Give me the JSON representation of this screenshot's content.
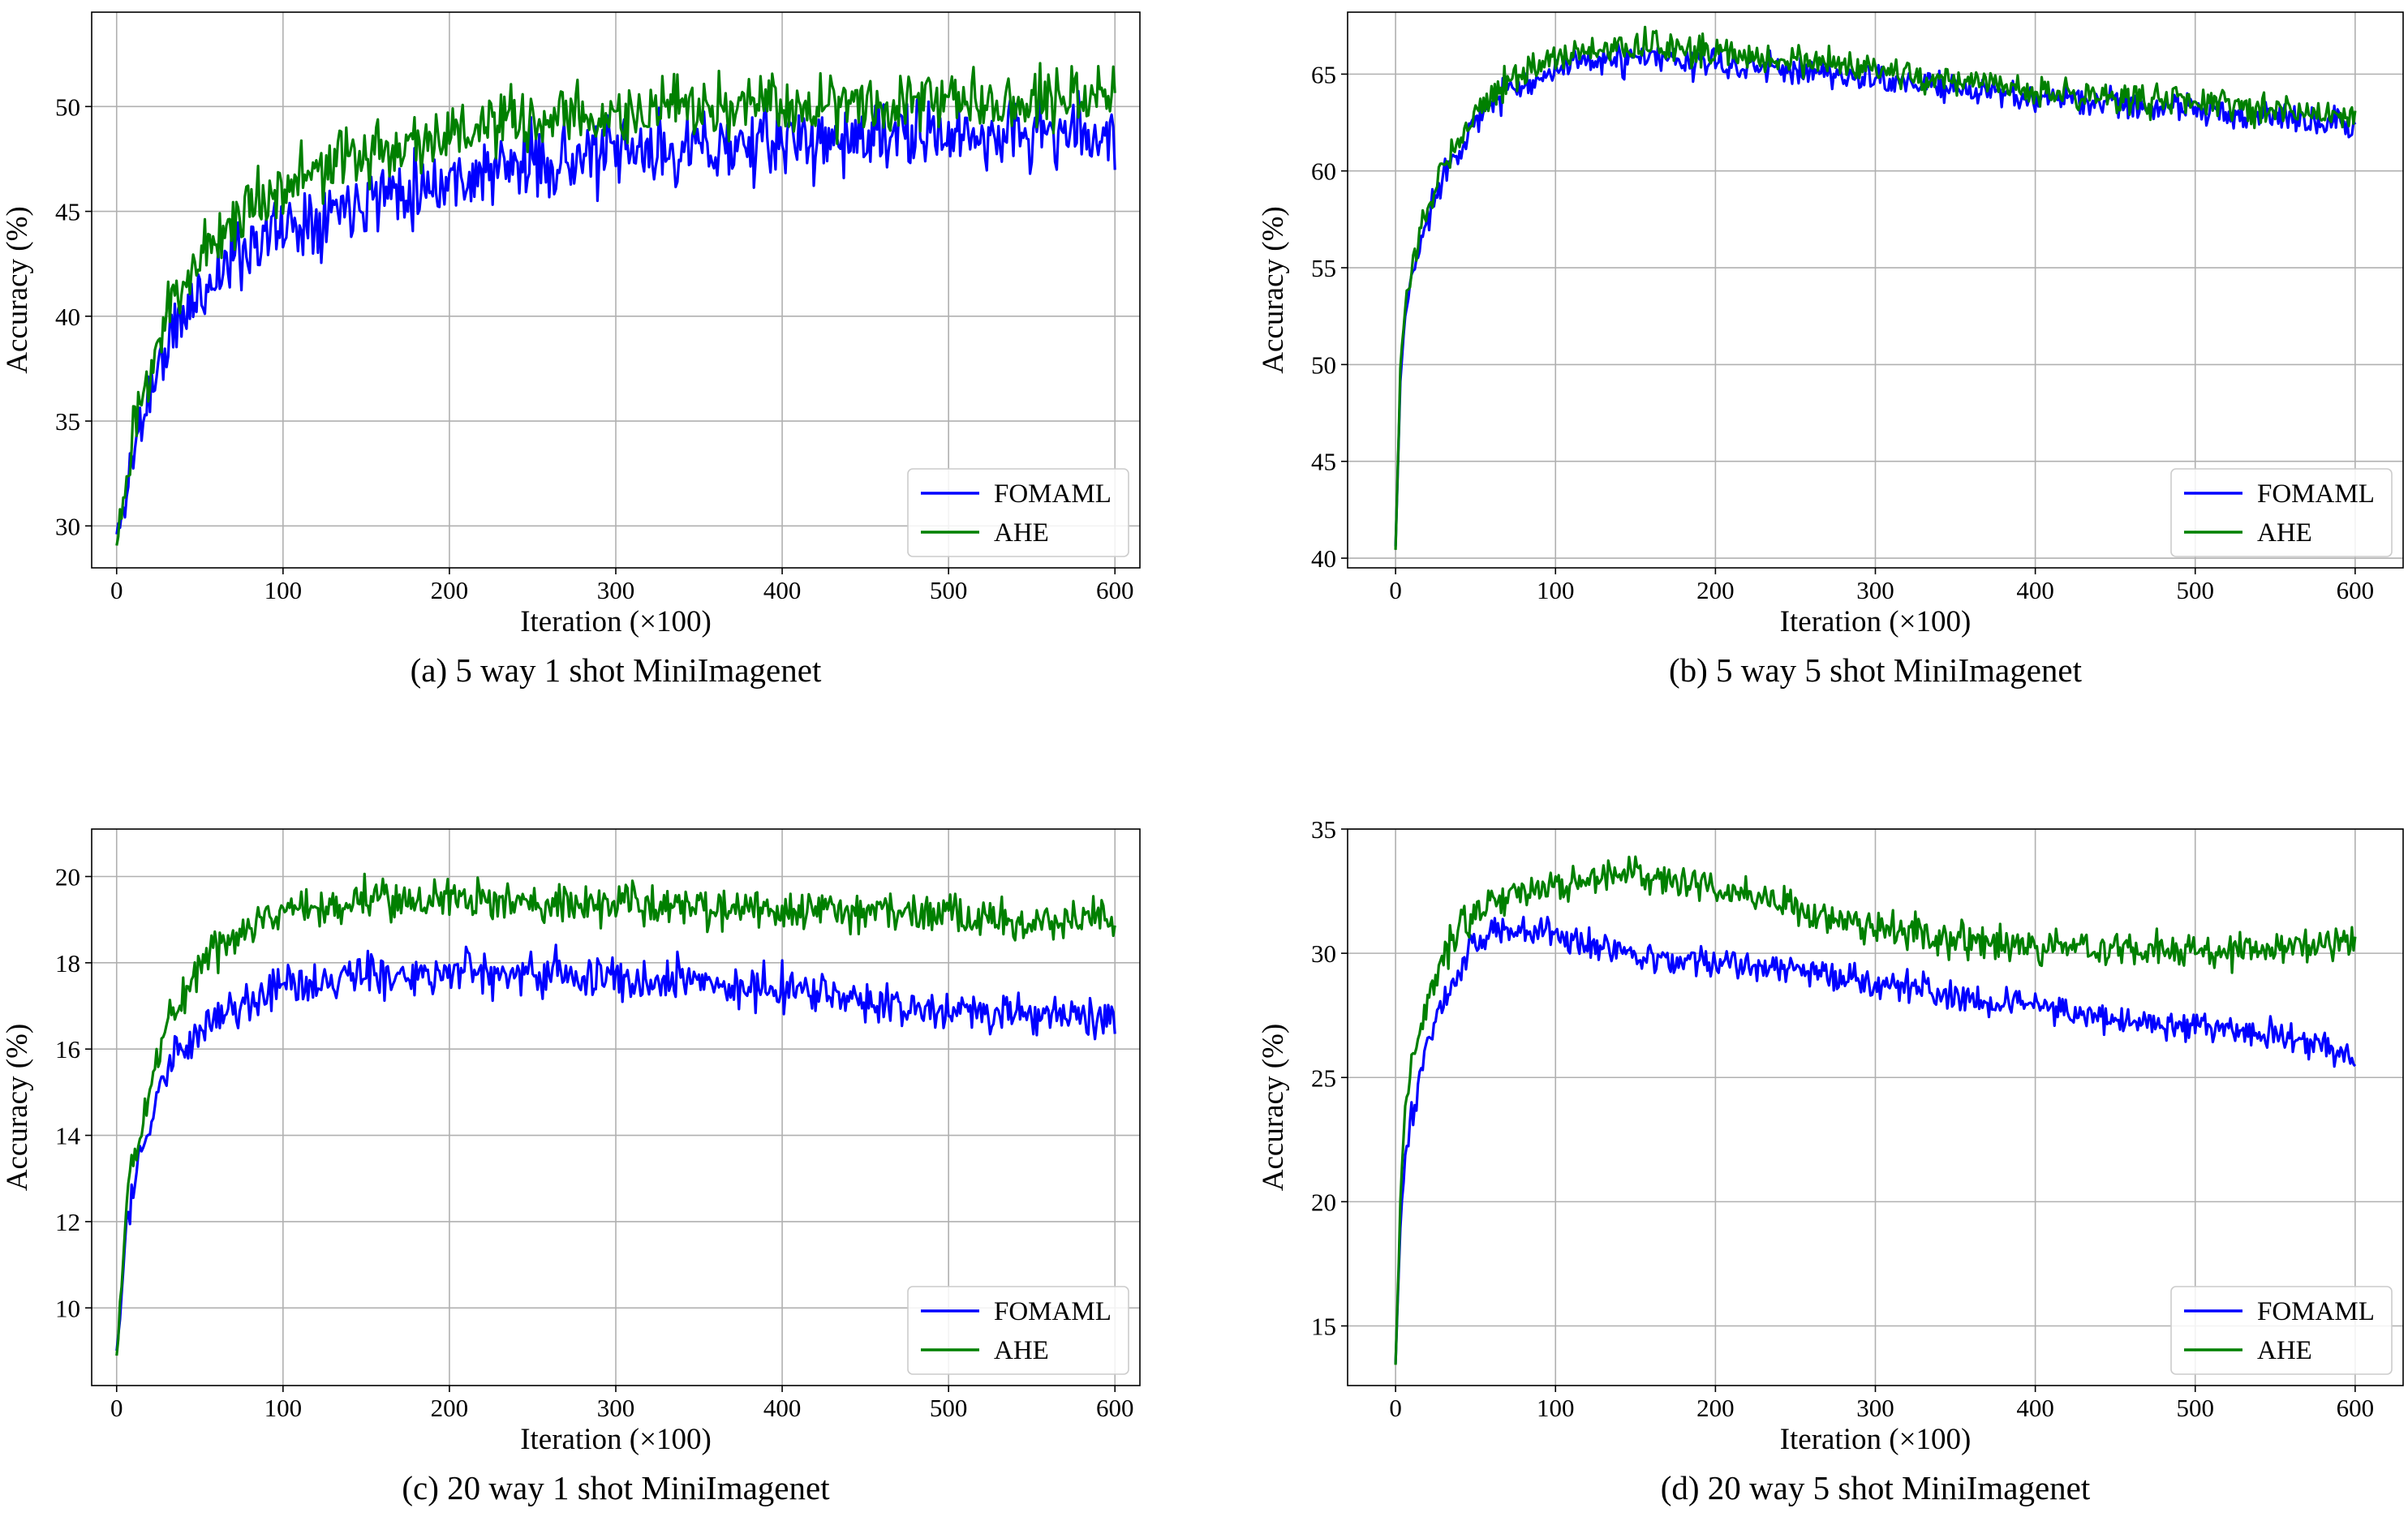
{
  "chart_data": [
    {
      "type": "line",
      "caption": "(a) 5 way 1 shot MiniImagenet",
      "xlabel": "Iteration (×100)",
      "ylabel": "Accuracy (%)",
      "xlim": [
        -15,
        615
      ],
      "ylim": [
        28,
        54.5
      ],
      "xticks": [
        0,
        100,
        200,
        300,
        400,
        500,
        600
      ],
      "yticks": [
        30,
        35,
        40,
        45,
        50
      ],
      "grid": true,
      "legend_position": "bottom-right",
      "series": [
        {
          "name": "FOMAML",
          "color": "#0000ff",
          "noise": 1.2,
          "seed": 11,
          "keypoints": [
            [
              0,
              29.5
            ],
            [
              5,
              31
            ],
            [
              10,
              33.5
            ],
            [
              20,
              36.5
            ],
            [
              30,
              38.5
            ],
            [
              40,
              40
            ],
            [
              60,
              42
            ],
            [
              80,
              43.5
            ],
            [
              100,
              44.2
            ],
            [
              150,
              45.8
            ],
            [
              200,
              46.5
            ],
            [
              250,
              47.3
            ],
            [
              300,
              47.7
            ],
            [
              350,
              48
            ],
            [
              400,
              48.3
            ],
            [
              450,
              48.5
            ],
            [
              500,
              48.6
            ],
            [
              550,
              48.7
            ],
            [
              600,
              48.7
            ]
          ]
        },
        {
          "name": "AHE",
          "color": "#008000",
          "noise": 1.1,
          "seed": 23,
          "keypoints": [
            [
              0,
              29.5
            ],
            [
              5,
              31.5
            ],
            [
              10,
              34
            ],
            [
              20,
              37.5
            ],
            [
              30,
              40
            ],
            [
              40,
              41.8
            ],
            [
              60,
              43.8
            ],
            [
              80,
              45.3
            ],
            [
              100,
              46.3
            ],
            [
              150,
              47.8
            ],
            [
              200,
              48.7
            ],
            [
              250,
              49.3
            ],
            [
              300,
              49.6
            ],
            [
              350,
              49.9
            ],
            [
              400,
              50.1
            ],
            [
              450,
              50.3
            ],
            [
              500,
              50.4
            ],
            [
              550,
              50.5
            ],
            [
              600,
              50.5
            ]
          ]
        }
      ]
    },
    {
      "type": "line",
      "caption": "(b) 5 way 5 shot MiniImagenet",
      "xlabel": "Iteration (×100)",
      "ylabel": "Accuracy (%)",
      "xlim": [
        -30,
        630
      ],
      "ylim": [
        39.5,
        68.2
      ],
      "xticks": [
        0,
        100,
        200,
        300,
        400,
        500,
        600
      ],
      "yticks": [
        40,
        45,
        50,
        55,
        60,
        65
      ],
      "grid": true,
      "legend_position": "bottom-right",
      "series": [
        {
          "name": "FOMAML",
          "color": "#0000ff",
          "noise": 0.55,
          "seed": 37,
          "keypoints": [
            [
              0,
              40.6
            ],
            [
              3,
              49
            ],
            [
              6,
              52.5
            ],
            [
              10,
              54.5
            ],
            [
              20,
              57.5
            ],
            [
              30,
              60
            ],
            [
              50,
              62.5
            ],
            [
              70,
              64.2
            ],
            [
              100,
              65.2
            ],
            [
              130,
              65.7
            ],
            [
              160,
              65.8
            ],
            [
              200,
              65.5
            ],
            [
              250,
              65.2
            ],
            [
              300,
              64.8
            ],
            [
              350,
              64.2
            ],
            [
              400,
              63.8
            ],
            [
              450,
              63.5
            ],
            [
              500,
              63.2
            ],
            [
              550,
              62.8
            ],
            [
              600,
              62.5
            ]
          ]
        },
        {
          "name": "AHE",
          "color": "#008000",
          "noise": 0.55,
          "seed": 53,
          "keypoints": [
            [
              0,
              40.6
            ],
            [
              3,
              49.5
            ],
            [
              6,
              53
            ],
            [
              10,
              55
            ],
            [
              20,
              58
            ],
            [
              30,
              60.5
            ],
            [
              50,
              63
            ],
            [
              70,
              64.8
            ],
            [
              100,
              65.8
            ],
            [
              130,
              66.3
            ],
            [
              160,
              66.5
            ],
            [
              200,
              66.1
            ],
            [
              250,
              65.7
            ],
            [
              300,
              65.2
            ],
            [
              350,
              64.6
            ],
            [
              400,
              64.1
            ],
            [
              450,
              63.8
            ],
            [
              500,
              63.6
            ],
            [
              550,
              63.2
            ],
            [
              600,
              62.8
            ]
          ]
        }
      ]
    },
    {
      "type": "line",
      "caption": "(c) 20 way 1 shot MiniImagenet",
      "xlabel": "Iteration (×100)",
      "ylabel": "Accuracy (%)",
      "xlim": [
        -15,
        615
      ],
      "ylim": [
        8.2,
        21.1
      ],
      "xticks": [
        0,
        100,
        200,
        300,
        400,
        500,
        600
      ],
      "yticks": [
        10,
        12,
        14,
        16,
        18,
        20
      ],
      "grid": true,
      "legend_position": "bottom-right",
      "series": [
        {
          "name": "FOMAML",
          "color": "#0000ff",
          "noise": 0.35,
          "seed": 71,
          "keypoints": [
            [
              0,
              9
            ],
            [
              3,
              10.2
            ],
            [
              6,
              12
            ],
            [
              10,
              13
            ],
            [
              20,
              14.3
            ],
            [
              30,
              15.5
            ],
            [
              50,
              16.4
            ],
            [
              80,
              17.1
            ],
            [
              100,
              17.4
            ],
            [
              150,
              17.7
            ],
            [
              200,
              17.8
            ],
            [
              250,
              17.8
            ],
            [
              300,
              17.7
            ],
            [
              350,
              17.6
            ],
            [
              400,
              17.4
            ],
            [
              450,
              17.1
            ],
            [
              500,
              16.9
            ],
            [
              550,
              16.8
            ],
            [
              600,
              16.7
            ]
          ]
        },
        {
          "name": "AHE",
          "color": "#008000",
          "noise": 0.35,
          "seed": 89,
          "keypoints": [
            [
              0,
              8.8
            ],
            [
              3,
              10.5
            ],
            [
              6,
              12.5
            ],
            [
              10,
              13.6
            ],
            [
              20,
              15
            ],
            [
              30,
              16.6
            ],
            [
              50,
              18
            ],
            [
              80,
              18.9
            ],
            [
              100,
              19.2
            ],
            [
              150,
              19.5
            ],
            [
              200,
              19.5
            ],
            [
              250,
              19.4
            ],
            [
              300,
              19.4
            ],
            [
              350,
              19.3
            ],
            [
              400,
              19.2
            ],
            [
              450,
              19.2
            ],
            [
              500,
              19.1
            ],
            [
              550,
              19
            ],
            [
              600,
              19
            ]
          ]
        }
      ]
    },
    {
      "type": "line",
      "caption": "(d) 20 way 5 shot MiniImagenet",
      "xlabel": "Iteration (×100)",
      "ylabel": "Accuracy (%)",
      "xlim": [
        -30,
        630
      ],
      "ylim": [
        12.6,
        35
      ],
      "xticks": [
        0,
        100,
        200,
        300,
        400,
        500,
        600
      ],
      "yticks": [
        15,
        20,
        25,
        30,
        35
      ],
      "grid": true,
      "legend_position": "bottom-right",
      "series": [
        {
          "name": "FOMAML",
          "color": "#0000ff",
          "noise": 0.45,
          "seed": 101,
          "keypoints": [
            [
              0,
              13.5
            ],
            [
              3,
              19
            ],
            [
              6,
              22
            ],
            [
              10,
              23.5
            ],
            [
              20,
              26.5
            ],
            [
              30,
              28
            ],
            [
              50,
              30.5
            ],
            [
              70,
              31
            ],
            [
              100,
              30.8
            ],
            [
              150,
              30
            ],
            [
              200,
              29.6
            ],
            [
              250,
              29.3
            ],
            [
              300,
              28.8
            ],
            [
              350,
              28.3
            ],
            [
              400,
              27.8
            ],
            [
              450,
              27.4
            ],
            [
              500,
              27
            ],
            [
              550,
              26.7
            ],
            [
              580,
              26.2
            ],
            [
              600,
              25.8
            ]
          ]
        },
        {
          "name": "AHE",
          "color": "#008000",
          "noise": 0.5,
          "seed": 131,
          "keypoints": [
            [
              0,
              13.5
            ],
            [
              3,
              20
            ],
            [
              6,
              24
            ],
            [
              10,
              25.5
            ],
            [
              20,
              28
            ],
            [
              30,
              30
            ],
            [
              50,
              31.8
            ],
            [
              80,
              32.5
            ],
            [
              100,
              32.8
            ],
            [
              150,
              33.2
            ],
            [
              200,
              32.6
            ],
            [
              250,
              31.8
            ],
            [
              300,
              31
            ],
            [
              350,
              30.6
            ],
            [
              400,
              30.3
            ],
            [
              450,
              30.2
            ],
            [
              500,
              30.1
            ],
            [
              550,
              30.2
            ],
            [
              600,
              30.6
            ]
          ]
        }
      ]
    }
  ]
}
